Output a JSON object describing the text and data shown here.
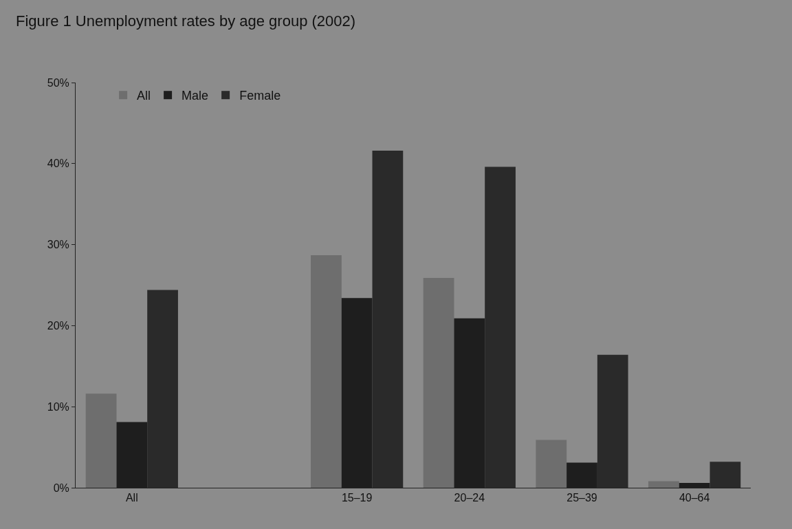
{
  "chart_data": {
    "type": "bar",
    "title": "Figure 1 Unemployment rates by age group (2002)",
    "categories": [
      "All",
      null,
      "15–19",
      "20–24",
      "25–39",
      "40–64"
    ],
    "series": [
      {
        "name": "All",
        "color": "#6e6e6e",
        "values": [
          11.6,
          null,
          28.7,
          25.9,
          5.9,
          0.8
        ]
      },
      {
        "name": "Male",
        "color": "#1e1e1e",
        "values": [
          8.1,
          null,
          23.4,
          20.9,
          3.1,
          0.6
        ]
      },
      {
        "name": "Female",
        "color": "#2a2a2a",
        "values": [
          24.4,
          null,
          41.6,
          39.6,
          16.4,
          3.2
        ]
      }
    ],
    "ylim": [
      0,
      50
    ],
    "yticks": [
      {
        "value": 0,
        "label": "0%"
      },
      {
        "value": 10,
        "label": "10%"
      },
      {
        "value": 20,
        "label": "20%"
      },
      {
        "value": 30,
        "label": "30%"
      },
      {
        "value": 40,
        "label": "40%"
      },
      {
        "value": 50,
        "label": "50%"
      }
    ],
    "grid": false,
    "legend": "top left"
  }
}
